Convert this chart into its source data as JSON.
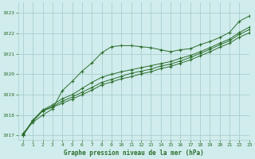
{
  "title": "Graphe pression niveau de la mer (hPa)",
  "background_color": "#d0ecec",
  "grid_color": "#aacfcf",
  "line_color": "#2d6e2d",
  "xlim": [
    -0.5,
    23
  ],
  "ylim": [
    1016.8,
    1023.5
  ],
  "yticks": [
    1017,
    1018,
    1019,
    1020,
    1021,
    1022,
    1023
  ],
  "xticks": [
    0,
    1,
    2,
    3,
    4,
    5,
    6,
    7,
    8,
    9,
    10,
    11,
    12,
    13,
    14,
    15,
    16,
    17,
    18,
    19,
    20,
    21,
    22,
    23
  ],
  "series": [
    [
      1017.1,
      1017.65,
      1018.0,
      1018.3,
      1019.2,
      1019.65,
      1020.15,
      1020.55,
      1021.05,
      1021.35,
      1021.4,
      1021.4,
      1021.35,
      1021.3,
      1021.2,
      1021.1,
      1021.2,
      1021.25,
      1021.45,
      1021.6,
      1021.8,
      1022.05,
      1022.6,
      1022.85
    ],
    [
      1017.05,
      1017.75,
      1018.25,
      1018.5,
      1018.8,
      1019.0,
      1019.3,
      1019.6,
      1019.85,
      1020.0,
      1020.12,
      1020.22,
      1020.32,
      1020.42,
      1020.52,
      1020.62,
      1020.78,
      1020.92,
      1021.1,
      1021.3,
      1021.52,
      1021.72,
      1022.05,
      1022.3
    ],
    [
      1017.02,
      1017.72,
      1018.22,
      1018.42,
      1018.68,
      1018.88,
      1019.12,
      1019.35,
      1019.6,
      1019.75,
      1019.9,
      1020.05,
      1020.15,
      1020.25,
      1020.4,
      1020.5,
      1020.65,
      1020.82,
      1021.02,
      1021.22,
      1021.44,
      1021.64,
      1021.96,
      1022.18
    ],
    [
      1017.0,
      1017.7,
      1018.2,
      1018.38,
      1018.58,
      1018.78,
      1019.0,
      1019.22,
      1019.48,
      1019.62,
      1019.78,
      1019.88,
      1020.02,
      1020.12,
      1020.28,
      1020.38,
      1020.54,
      1020.7,
      1020.9,
      1021.1,
      1021.32,
      1021.52,
      1021.82,
      1022.02
    ]
  ]
}
